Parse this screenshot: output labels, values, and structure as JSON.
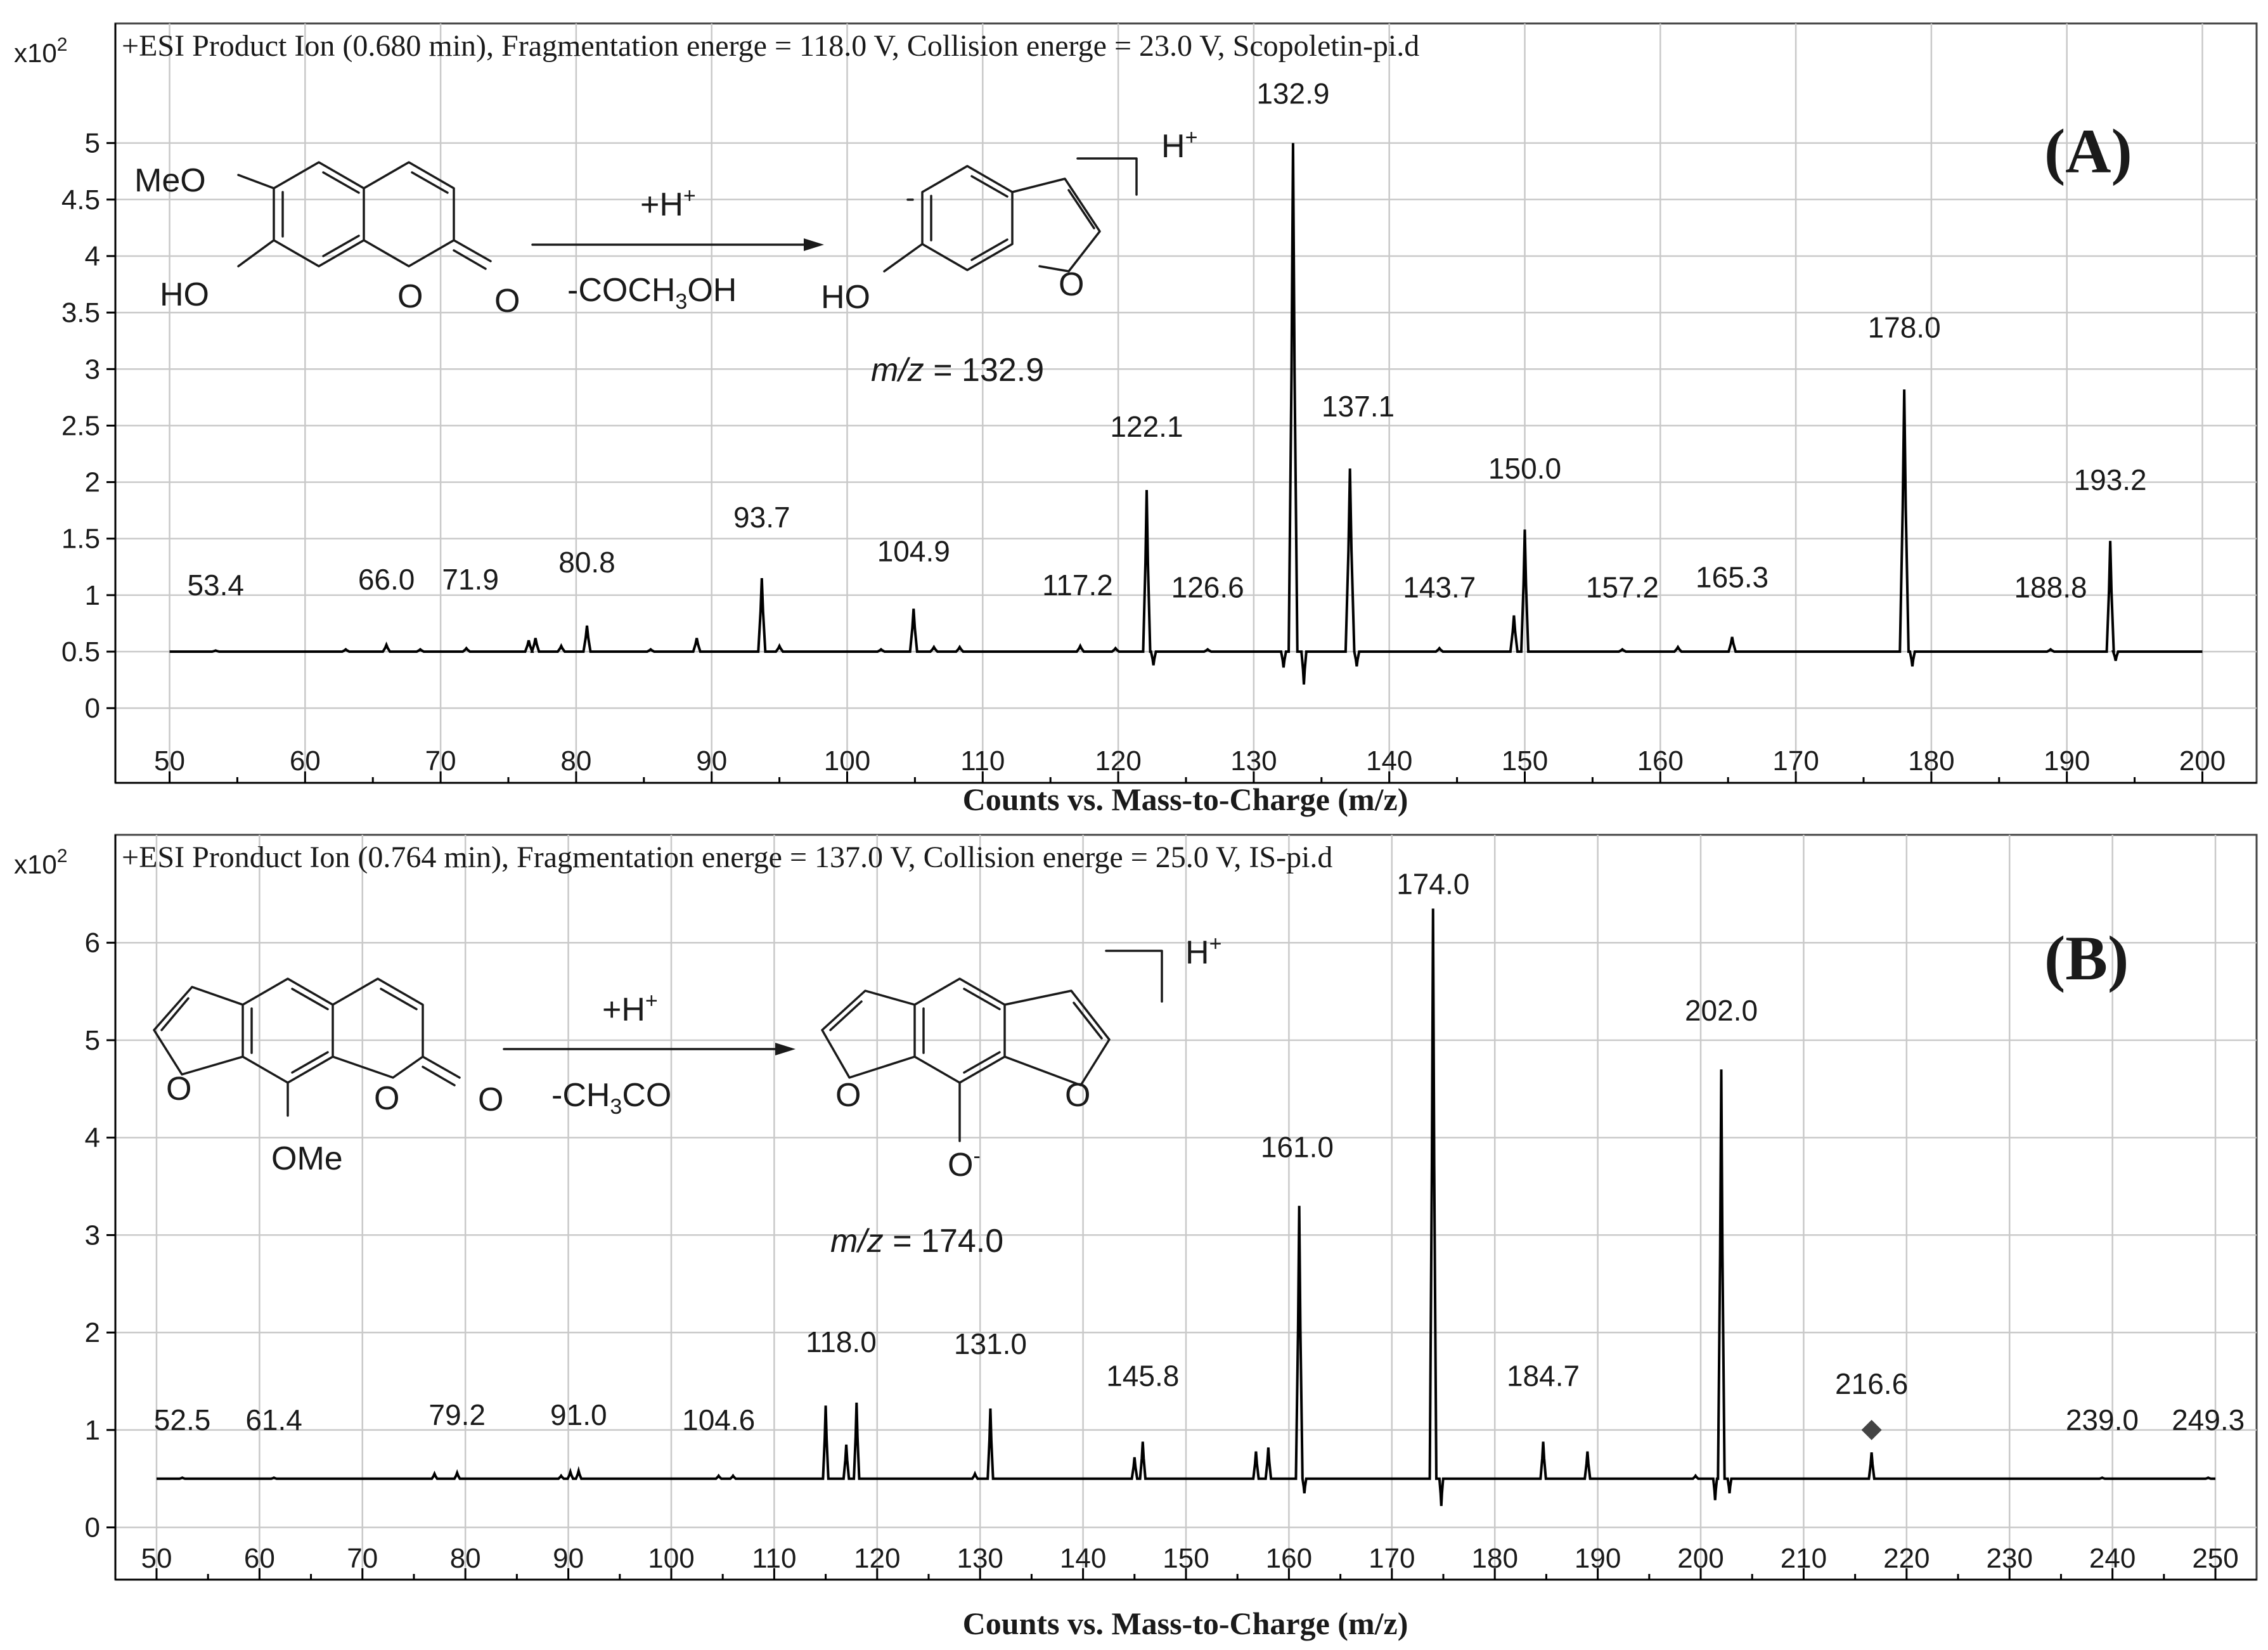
{
  "chart_data": [
    {
      "type": "line",
      "panel_label": "(A)",
      "title": "+ESI Product Ion (0.680 min), Fragmentation energe = 118.0 V, Collision energe = 23.0 V, Scopoletin-pi.d",
      "y_multiplier": "x10",
      "y_exponent": "2",
      "xlabel": "Counts vs. Mass-to-Charge (m/z)",
      "xlim": [
        46,
        204
      ],
      "ylim": [
        -0.1,
        5.2
      ],
      "xticks": [
        50,
        60,
        70,
        80,
        90,
        100,
        110,
        120,
        130,
        140,
        150,
        160,
        170,
        180,
        190,
        200
      ],
      "yticks": [
        0,
        0.5,
        1,
        1.5,
        2,
        2.5,
        3,
        3.5,
        4,
        4.5,
        5
      ],
      "ytick_labels": [
        "0",
        "0.5",
        "1",
        "1.5",
        "2",
        "2.5",
        "3",
        "3.5",
        "4",
        "4.5",
        "5"
      ],
      "baseline": 0.5,
      "peaks": [
        {
          "x": 53.4,
          "y": 0.51
        },
        {
          "x": 63.0,
          "y": 0.52
        },
        {
          "x": 66.0,
          "y": 0.56
        },
        {
          "x": 68.5,
          "y": 0.52
        },
        {
          "x": 71.9,
          "y": 0.53
        },
        {
          "x": 76.5,
          "y": 0.6
        },
        {
          "x": 77.0,
          "y": 0.62
        },
        {
          "x": 78.9,
          "y": 0.55
        },
        {
          "x": 80.8,
          "y": 0.73
        },
        {
          "x": 85.5,
          "y": 0.52
        },
        {
          "x": 88.9,
          "y": 0.62
        },
        {
          "x": 93.7,
          "y": 1.15
        },
        {
          "x": 95.0,
          "y": 0.55
        },
        {
          "x": 102.5,
          "y": 0.52
        },
        {
          "x": 104.9,
          "y": 0.88
        },
        {
          "x": 106.4,
          "y": 0.54
        },
        {
          "x": 108.3,
          "y": 0.54
        },
        {
          "x": 117.2,
          "y": 0.55
        },
        {
          "x": 119.8,
          "y": 0.53
        },
        {
          "x": 122.1,
          "y": 1.93
        },
        {
          "x": 126.6,
          "y": 0.52
        },
        {
          "x": 132.9,
          "y": 5.0
        },
        {
          "x": 137.1,
          "y": 2.12
        },
        {
          "x": 143.7,
          "y": 0.53
        },
        {
          "x": 149.2,
          "y": 0.82
        },
        {
          "x": 150.0,
          "y": 1.58
        },
        {
          "x": 157.2,
          "y": 0.52
        },
        {
          "x": 161.3,
          "y": 0.54
        },
        {
          "x": 165.3,
          "y": 0.63
        },
        {
          "x": 178.0,
          "y": 2.82
        },
        {
          "x": 188.8,
          "y": 0.52
        },
        {
          "x": 193.2,
          "y": 1.48
        }
      ],
      "dips": [
        {
          "x": 122.6,
          "y": 0.38
        },
        {
          "x": 132.2,
          "y": 0.36
        },
        {
          "x": 133.7,
          "y": 0.21
        },
        {
          "x": 137.6,
          "y": 0.37
        },
        {
          "x": 178.6,
          "y": 0.37
        },
        {
          "x": 193.6,
          "y": 0.42
        }
      ],
      "peak_labels": [
        {
          "text": "53.4",
          "x": 53.4,
          "y": 1.0
        },
        {
          "text": "66.0",
          "x": 66.0,
          "y": 1.05
        },
        {
          "text": "71.9",
          "x": 72.2,
          "y": 1.05
        },
        {
          "text": "80.8",
          "x": 80.8,
          "y": 1.2
        },
        {
          "text": "93.7",
          "x": 93.7,
          "y": 1.6
        },
        {
          "text": "104.9",
          "x": 104.9,
          "y": 1.3
        },
        {
          "text": "117.2",
          "x": 117.0,
          "y": 1.0
        },
        {
          "text": "122.1",
          "x": 122.1,
          "y": 2.4
        },
        {
          "text": "126.6",
          "x": 126.6,
          "y": 0.98
        },
        {
          "text": "132.9",
          "x": 132.9,
          "y": 5.35
        },
        {
          "text": "137.1",
          "x": 137.7,
          "y": 2.58
        },
        {
          "text": "143.7",
          "x": 143.7,
          "y": 0.98
        },
        {
          "text": "150.0",
          "x": 150.0,
          "y": 2.03
        },
        {
          "text": "157.2",
          "x": 157.2,
          "y": 0.98
        },
        {
          "text": "165.3",
          "x": 165.3,
          "y": 1.07
        },
        {
          "text": "178.0",
          "x": 178.0,
          "y": 3.28
        },
        {
          "text": "188.8",
          "x": 188.8,
          "y": 0.98
        },
        {
          "text": "193.2",
          "x": 193.2,
          "y": 1.93
        }
      ],
      "scheme": {
        "reactant_sub_1": "MeO",
        "reactant_sub_2": "HO",
        "ring_o_1": "O",
        "ring_o_2": "O",
        "reagent_top": "+H",
        "reagent_top_sup": "+",
        "reagent_bottom": "-COCH",
        "reagent_bottom_sub": "3",
        "reagent_bottom_tail": "OH",
        "product_sub": "HO",
        "product_ring_o": "O",
        "charge": "H",
        "charge_sup": "+",
        "mz_italic": "m/z",
        "mz_value": " = 132.9"
      }
    },
    {
      "type": "line",
      "panel_label": "(B)",
      "title": "+ESI Pronduct Ion (0.764 min), Fragmentation energe = 137.0 V, Collision energe = 25.0 V, IS-pi.d",
      "y_multiplier": "x10",
      "y_exponent": "2",
      "xlabel": "Counts vs. Mass-to-Charge (m/z)",
      "xlim": [
        46,
        254
      ],
      "ylim": [
        -0.1,
        6.6
      ],
      "xticks": [
        50,
        60,
        70,
        80,
        90,
        100,
        110,
        120,
        130,
        140,
        150,
        160,
        170,
        180,
        190,
        200,
        210,
        220,
        230,
        240,
        250
      ],
      "yticks": [
        0,
        1,
        2,
        3,
        4,
        5,
        6
      ],
      "ytick_labels": [
        "0",
        "1",
        "2",
        "3",
        "4",
        "5",
        "6"
      ],
      "baseline": 0.5,
      "peaks": [
        {
          "x": 52.5,
          "y": 0.51
        },
        {
          "x": 61.4,
          "y": 0.51
        },
        {
          "x": 77.0,
          "y": 0.55
        },
        {
          "x": 79.2,
          "y": 0.56
        },
        {
          "x": 89.3,
          "y": 0.53
        },
        {
          "x": 90.2,
          "y": 0.57
        },
        {
          "x": 91.0,
          "y": 0.58
        },
        {
          "x": 104.6,
          "y": 0.53
        },
        {
          "x": 106.0,
          "y": 0.53
        },
        {
          "x": 115.0,
          "y": 1.25
        },
        {
          "x": 117.0,
          "y": 0.85
        },
        {
          "x": 118.0,
          "y": 1.28
        },
        {
          "x": 129.5,
          "y": 0.55
        },
        {
          "x": 131.0,
          "y": 1.22
        },
        {
          "x": 145.0,
          "y": 0.72
        },
        {
          "x": 145.8,
          "y": 0.88
        },
        {
          "x": 156.8,
          "y": 0.78
        },
        {
          "x": 158.0,
          "y": 0.82
        },
        {
          "x": 161.0,
          "y": 3.3
        },
        {
          "x": 174.0,
          "y": 6.35
        },
        {
          "x": 184.7,
          "y": 0.88
        },
        {
          "x": 189.0,
          "y": 0.78
        },
        {
          "x": 199.5,
          "y": 0.53
        },
        {
          "x": 202.0,
          "y": 4.7
        },
        {
          "x": 216.6,
          "y": 0.77
        },
        {
          "x": 239.0,
          "y": 0.51
        },
        {
          "x": 249.3,
          "y": 0.51
        }
      ],
      "dips": [
        {
          "x": 161.5,
          "y": 0.35
        },
        {
          "x": 174.8,
          "y": 0.22
        },
        {
          "x": 201.4,
          "y": 0.28
        },
        {
          "x": 202.8,
          "y": 0.35
        }
      ],
      "peak_labels": [
        {
          "text": "52.5",
          "x": 52.5,
          "y": 1.0
        },
        {
          "text": "61.4",
          "x": 61.4,
          "y": 1.0
        },
        {
          "text": "79.2",
          "x": 79.2,
          "y": 1.05
        },
        {
          "text": "91.0",
          "x": 91.0,
          "y": 1.05
        },
        {
          "text": "104.6",
          "x": 104.6,
          "y": 1.0
        },
        {
          "text": "118.0",
          "x": 116.5,
          "y": 1.8
        },
        {
          "text": "131.0",
          "x": 131.0,
          "y": 1.78
        },
        {
          "text": "145.8",
          "x": 145.8,
          "y": 1.45
        },
        {
          "text": "161.0",
          "x": 160.8,
          "y": 3.8
        },
        {
          "text": "174.0",
          "x": 174.0,
          "y": 6.5
        },
        {
          "text": "184.7",
          "x": 184.7,
          "y": 1.45
        },
        {
          "text": "202.0",
          "x": 202.0,
          "y": 5.2
        },
        {
          "text": "216.6",
          "x": 216.6,
          "y": 1.37
        },
        {
          "text": "239.0",
          "x": 239.0,
          "y": 1.0
        },
        {
          "text": "249.3",
          "x": 249.3,
          "y": 1.0
        }
      ],
      "marker": {
        "x": 216.6,
        "y": 1.0,
        "shape": "diamond"
      },
      "scheme": {
        "ring_o_1": "O",
        "ring_o_2": "O",
        "ring_o_3": "O",
        "reactant_sub": "OMe",
        "reagent_top": "+H",
        "reagent_top_sup": "+",
        "reagent_bottom": "-CH",
        "reagent_bottom_sub": "3",
        "reagent_bottom_tail": "CO",
        "product_ring_o_1": "O",
        "product_ring_o_2": "O",
        "product_sub": "O",
        "product_sub_sup": "-",
        "charge": "H",
        "charge_sup": "+",
        "mz_italic": "m/z",
        "mz_value": " = 174.0"
      }
    }
  ]
}
